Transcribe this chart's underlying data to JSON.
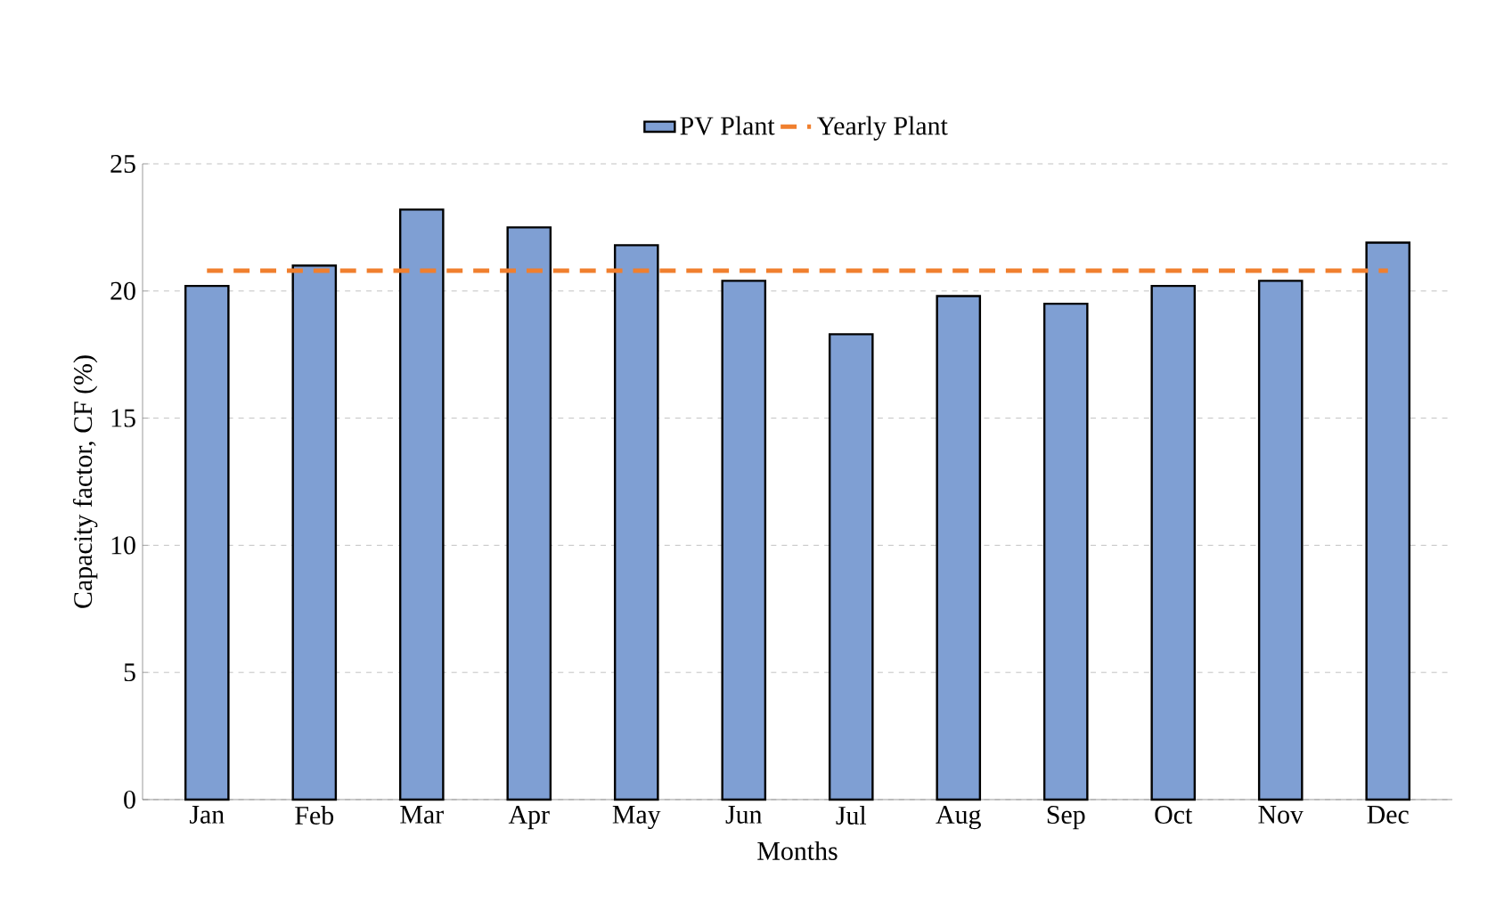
{
  "chart_data": {
    "type": "bar",
    "xlabel": "Months",
    "ylabel": "Capacity factor, CF (%)",
    "categories": [
      "Jan",
      "Feb",
      "Mar",
      "Apr",
      "May",
      "Jun",
      "Jul",
      "Aug",
      "Sep",
      "Oct",
      "Nov",
      "Dec"
    ],
    "series": [
      {
        "name": "PV Plant",
        "color": "#7f9fd3",
        "values": [
          20.2,
          21.0,
          23.2,
          22.5,
          21.8,
          20.4,
          18.3,
          19.8,
          19.5,
          20.2,
          20.4,
          21.9
        ]
      },
      {
        "name": "Yearly Plant",
        "type": "line",
        "line_style": "dashed",
        "color": "#f07f2e",
        "values": [
          20.8,
          20.8,
          20.8,
          20.8,
          20.8,
          20.8,
          20.8,
          20.8,
          20.8,
          20.8,
          20.8,
          20.8
        ]
      }
    ],
    "ylim": [
      0,
      25
    ],
    "yticks": [
      0,
      5,
      10,
      15,
      20,
      25
    ],
    "grid": "y",
    "legend": "top"
  }
}
